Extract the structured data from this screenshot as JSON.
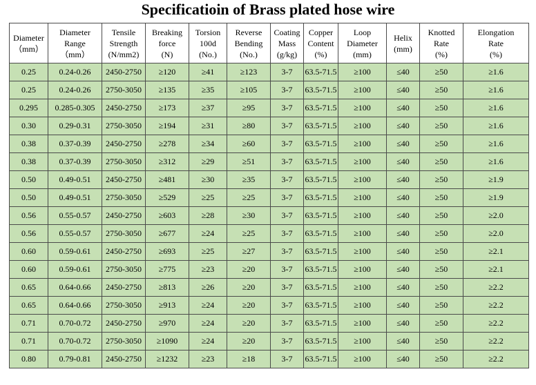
{
  "title": "Specificatioin of Brass plated hose wire",
  "columns": [
    [
      "Diameter",
      "（mm）"
    ],
    [
      "Diameter",
      "Range",
      "（mm）"
    ],
    [
      "Tensile",
      "Strength",
      "(N/mm2)"
    ],
    [
      "Breaking",
      "force",
      "(N)"
    ],
    [
      "Torsion",
      "100d",
      "(No.)"
    ],
    [
      "Reverse",
      "Bending",
      "(No.)"
    ],
    [
      "Coating",
      "Mass",
      "(g/kg)"
    ],
    [
      "Copper",
      "Content",
      "(%)"
    ],
    [
      "Loop",
      "Diameter",
      "(mm)"
    ],
    [
      "Helix",
      "(mm)"
    ],
    [
      "Knotted",
      "Rate",
      "(%)"
    ],
    [
      "Elongation",
      "Rate",
      "(%)"
    ]
  ],
  "rows": [
    [
      "0.25",
      "0.24-0.26",
      "2450-2750",
      "≥120",
      "≥41",
      "≥123",
      "3-7",
      "63.5-71.5",
      "≥100",
      "≤40",
      "≥50",
      "≥1.6"
    ],
    [
      "0.25",
      "0.24-0.26",
      "2750-3050",
      "≥135",
      "≥35",
      "≥105",
      "3-7",
      "63.5-71.5",
      "≥100",
      "≤40",
      "≥50",
      "≥1.6"
    ],
    [
      "0.295",
      "0.285-0.305",
      "2450-2750",
      "≥173",
      "≥37",
      "≥95",
      "3-7",
      "63.5-71.5",
      "≥100",
      "≤40",
      "≥50",
      "≥1.6"
    ],
    [
      "0.30",
      "0.29-0.31",
      "2750-3050",
      "≥194",
      "≥31",
      "≥80",
      "3-7",
      "63.5-71.5",
      "≥100",
      "≤40",
      "≥50",
      "≥1.6"
    ],
    [
      "0.38",
      "0.37-0.39",
      "2450-2750",
      "≥278",
      "≥34",
      "≥60",
      "3-7",
      "63.5-71.5",
      "≥100",
      "≤40",
      "≥50",
      "≥1.6"
    ],
    [
      "0.38",
      "0.37-0.39",
      "2750-3050",
      "≥312",
      "≥29",
      "≥51",
      "3-7",
      "63.5-71.5",
      "≥100",
      "≤40",
      "≥50",
      "≥1.6"
    ],
    [
      "0.50",
      "0.49-0.51",
      "2450-2750",
      "≥481",
      "≥30",
      "≥35",
      "3-7",
      "63.5-71.5",
      "≥100",
      "≤40",
      "≥50",
      "≥1.9"
    ],
    [
      "0.50",
      "0.49-0.51",
      "2750-3050",
      "≥529",
      "≥25",
      "≥25",
      "3-7",
      "63.5-71.5",
      "≥100",
      "≤40",
      "≥50",
      "≥1.9"
    ],
    [
      "0.56",
      "0.55-0.57",
      "2450-2750",
      "≥603",
      "≥28",
      "≥30",
      "3-7",
      "63.5-71.5",
      "≥100",
      "≤40",
      "≥50",
      "≥2.0"
    ],
    [
      "0.56",
      "0.55-0.57",
      "2750-3050",
      "≥677",
      "≥24",
      "≥25",
      "3-7",
      "63.5-71.5",
      "≥100",
      "≤40",
      "≥50",
      "≥2.0"
    ],
    [
      "0.60",
      "0.59-0.61",
      "2450-2750",
      "≥693",
      "≥25",
      "≥27",
      "3-7",
      "63.5-71.5",
      "≥100",
      "≤40",
      "≥50",
      "≥2.1"
    ],
    [
      "0.60",
      "0.59-0.61",
      "2750-3050",
      "≥775",
      "≥23",
      "≥20",
      "3-7",
      "63.5-71.5",
      "≥100",
      "≤40",
      "≥50",
      "≥2.1"
    ],
    [
      "0.65",
      "0.64-0.66",
      "2450-2750",
      "≥813",
      "≥26",
      "≥20",
      "3-7",
      "63.5-71.5",
      "≥100",
      "≤40",
      "≥50",
      "≥2.2"
    ],
    [
      "0.65",
      "0.64-0.66",
      "2750-3050",
      "≥913",
      "≥24",
      "≥20",
      "3-7",
      "63.5-71.5",
      "≥100",
      "≤40",
      "≥50",
      "≥2.2"
    ],
    [
      "0.71",
      "0.70-0.72",
      "2450-2750",
      "≥970",
      "≥24",
      "≥20",
      "3-7",
      "63.5-71.5",
      "≥100",
      "≤40",
      "≥50",
      "≥2.2"
    ],
    [
      "0.71",
      "0.70-0.72",
      "2750-3050",
      "≥1090",
      "≥24",
      "≥20",
      "3-7",
      "63.5-71.5",
      "≥100",
      "≤40",
      "≥50",
      "≥2.2"
    ],
    [
      "0.80",
      "0.79-0.81",
      "2450-2750",
      "≥1232",
      "≥23",
      "≥18",
      "3-7",
      "63.5-71.5",
      "≥100",
      "≤40",
      "≥50",
      "≥2.2"
    ]
  ],
  "colors": {
    "row_fill": "#c6e0b4",
    "border": "#4a4a4a",
    "header_fill": "#ffffff"
  }
}
